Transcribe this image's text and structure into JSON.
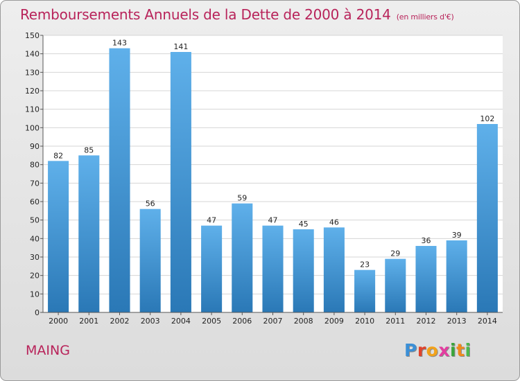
{
  "title": "Remboursements Annuels de la Dette de 2000 à 2014",
  "subtitle": "(en milliers d'€)",
  "commune": "MAING",
  "logo": {
    "letters": [
      "P",
      "r",
      "o",
      "x",
      "i",
      "t",
      "i"
    ],
    "colors": [
      "#3b8fd6",
      "#e0432c",
      "#f2a21a",
      "#e33da0",
      "#3aa53a",
      "#f08a1c",
      "#4cb84c"
    ]
  },
  "colors": {
    "bar_light": "#5fb0ea",
    "bar_dark": "#2a78b6",
    "title": "#b8235a"
  },
  "chart_data": {
    "type": "bar",
    "title": "Remboursements Annuels de la Dette de 2000 à 2014",
    "subtitle": "(en milliers d'€)",
    "xlabel": "",
    "ylabel": "",
    "categories": [
      "2000",
      "2001",
      "2002",
      "2003",
      "2004",
      "2005",
      "2006",
      "2007",
      "2008",
      "2009",
      "2010",
      "2011",
      "2012",
      "2013",
      "2014"
    ],
    "values": [
      82,
      85,
      143,
      56,
      141,
      47,
      59,
      47,
      45,
      46,
      23,
      29,
      36,
      39,
      102
    ],
    "ylim": [
      0,
      150
    ],
    "yticks": [
      0,
      10,
      20,
      30,
      40,
      50,
      60,
      70,
      80,
      90,
      100,
      110,
      120,
      130,
      140,
      150
    ],
    "grid": true
  }
}
